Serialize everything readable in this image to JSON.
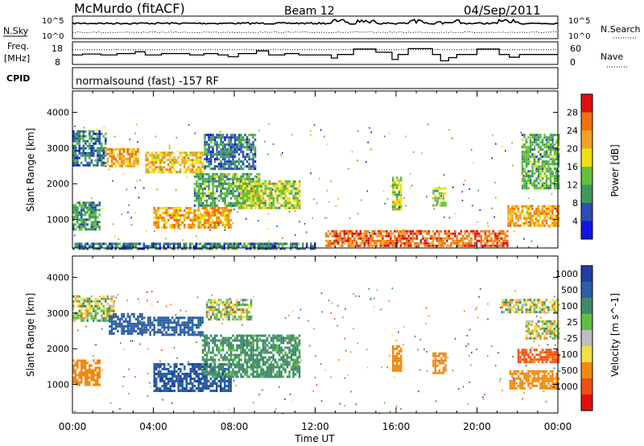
{
  "header": {
    "station": "McMurdo (fitACF)",
    "beam": "Beam 12",
    "date": "04/Sep/2011"
  },
  "noise_panel": {
    "left_label": "N.Sky",
    "right_label": "N.Search",
    "left_ticks": [
      "10^5",
      "10^0"
    ],
    "right_ticks": [
      "10^5",
      "10^0"
    ],
    "series": [
      {
        "name": "N.Sky",
        "style": "solid",
        "level": 0.68,
        "bursts_h": [
          13.0,
          13.3,
          13.5,
          14.2,
          14.5,
          14.9,
          16.8,
          17.2,
          18.1,
          19.0,
          21.2,
          21.4,
          21.9
        ]
      },
      {
        "name": "N.Search",
        "style": "dotted",
        "level": 0.28
      }
    ]
  },
  "freq_panel": {
    "left_label": "Freq.",
    "left_unit": "[MHz]",
    "right_label": "Nave",
    "left_ticks": [
      18,
      8
    ],
    "right_ticks": [
      60,
      0
    ],
    "freq_steps": [
      {
        "t": 0.0,
        "f": 12.2
      },
      {
        "t": 0.5,
        "f": 12.6
      },
      {
        "t": 1.4,
        "f": 12.2
      },
      {
        "t": 2.2,
        "f": 12.8
      },
      {
        "t": 3.1,
        "f": 13.6
      },
      {
        "t": 3.6,
        "f": 12.2
      },
      {
        "t": 4.4,
        "f": 12.8
      },
      {
        "t": 5.8,
        "f": 12.2
      },
      {
        "t": 6.5,
        "f": 12.8
      },
      {
        "t": 7.2,
        "f": 12.2
      },
      {
        "t": 7.7,
        "f": 11.4
      },
      {
        "t": 8.2,
        "f": 12.8
      },
      {
        "t": 9.1,
        "f": 14.0
      },
      {
        "t": 9.7,
        "f": 12.2
      },
      {
        "t": 10.5,
        "f": 12.8
      },
      {
        "t": 11.2,
        "f": 12.2
      },
      {
        "t": 12.2,
        "f": 12.2
      },
      {
        "t": 12.8,
        "f": 10.8
      },
      {
        "t": 13.1,
        "f": 12.4
      },
      {
        "t": 13.9,
        "f": 14.8
      },
      {
        "t": 15.0,
        "f": 13.4
      },
      {
        "t": 15.8,
        "f": 10.2
      },
      {
        "t": 16.1,
        "f": 12.4
      },
      {
        "t": 16.6,
        "f": 15.0
      },
      {
        "t": 17.8,
        "f": 12.4
      },
      {
        "t": 18.2,
        "f": 9.6
      },
      {
        "t": 18.6,
        "f": 11.0
      },
      {
        "t": 19.0,
        "f": 12.4
      },
      {
        "t": 20.0,
        "f": 14.8
      },
      {
        "t": 21.1,
        "f": 12.4
      },
      {
        "t": 21.6,
        "f": 11.2
      },
      {
        "t": 22.1,
        "f": 12.4
      },
      {
        "t": 24.0,
        "f": 12.4
      }
    ],
    "nave_level": 0.65
  },
  "cpid_panel": {
    "label": "CPID",
    "text": "normalsound (fast) -157 RF"
  },
  "colorbars": {
    "power": {
      "label": "Power [dB]",
      "ticks": [
        "4",
        "8",
        "12",
        "16",
        "20",
        "24",
        "28"
      ],
      "colors": [
        "#1414e6",
        "#2a4fb0",
        "#3c9a5a",
        "#63c03a",
        "#f0e010",
        "#f5a020",
        "#f07010",
        "#e01010"
      ]
    },
    "velocity": {
      "label": "Velocity [m s^-1]",
      "ticks": [
        "1000",
        "500",
        "100",
        "25",
        "-25",
        "-100",
        "-500",
        "-1000"
      ],
      "colors": [
        "#1e3ea8",
        "#2a5fa5",
        "#3f8a6a",
        "#5cc040",
        "#bebebe",
        "#f2e040",
        "#f08a10",
        "#f05010",
        "#e01010"
      ]
    }
  },
  "chart_data": [
    {
      "type": "heatmap",
      "name": "power",
      "ylabel": "Slant Range [km]",
      "y_ticks": [
        1000,
        2000,
        3000,
        4000
      ],
      "ylim": [
        200,
        4600
      ],
      "xlim_hours": [
        0,
        24
      ],
      "value_range_db": [
        0,
        32
      ],
      "regions": [
        {
          "t0": 0.0,
          "t1": 1.6,
          "r0": 2500,
          "r1": 3500,
          "v": 8
        },
        {
          "t0": 1.6,
          "t1": 3.2,
          "r0": 2500,
          "r1": 3000,
          "v": 22
        },
        {
          "t0": 3.6,
          "t1": 6.4,
          "r0": 2350,
          "r1": 2900,
          "v": 20
        },
        {
          "t0": 0.0,
          "t1": 1.3,
          "r0": 700,
          "r1": 1500,
          "v": 10
        },
        {
          "t0": 4.0,
          "t1": 7.8,
          "r0": 750,
          "r1": 1350,
          "v": 22
        },
        {
          "t0": 6.0,
          "t1": 9.2,
          "r0": 1400,
          "r1": 2300,
          "v": 12
        },
        {
          "t0": 8.2,
          "t1": 11.2,
          "r0": 1300,
          "r1": 2100,
          "v": 16
        },
        {
          "t0": 6.5,
          "t1": 9.0,
          "r0": 2400,
          "r1": 3400,
          "v": 8
        },
        {
          "t0": 15.8,
          "t1": 16.2,
          "r0": 1300,
          "r1": 2200,
          "v": 16
        },
        {
          "t0": 17.8,
          "t1": 18.4,
          "r0": 1400,
          "r1": 1900,
          "v": 16
        },
        {
          "t0": 21.5,
          "t1": 24.0,
          "r0": 800,
          "r1": 1400,
          "v": 22
        },
        {
          "t0": 22.2,
          "t1": 24.0,
          "r0": 1900,
          "r1": 3400,
          "v": 12
        },
        {
          "t0": 12.5,
          "t1": 21.5,
          "r0": 250,
          "r1": 700,
          "v": 26
        },
        {
          "t0": 0.0,
          "t1": 12.0,
          "r0": 200,
          "r1": 350,
          "v": 8
        }
      ]
    },
    {
      "type": "heatmap",
      "name": "velocity",
      "ylabel": "Slant Range [km]",
      "y_ticks": [
        1000,
        2000,
        3000,
        4000
      ],
      "ylim": [
        200,
        4600
      ],
      "xlim_hours": [
        0,
        24
      ],
      "x_ticks": [
        "00:00",
        "04:00",
        "08:00",
        "12:00",
        "16:00",
        "20:00",
        "00:00"
      ],
      "xlabel": "Time UT",
      "regions": [
        {
          "t0": 0.0,
          "t1": 2.0,
          "r0": 2800,
          "r1": 3500,
          "v": 0
        },
        {
          "t0": 1.8,
          "t1": 3.4,
          "r0": 2400,
          "r1": 3000,
          "v": 700
        },
        {
          "t0": 3.4,
          "t1": 6.4,
          "r0": 2400,
          "r1": 2900,
          "v": 800
        },
        {
          "t0": 6.6,
          "t1": 8.8,
          "r0": 2800,
          "r1": 3400,
          "v": 0
        },
        {
          "t0": 0.0,
          "t1": 1.3,
          "r0": 1000,
          "r1": 1700,
          "v": -300
        },
        {
          "t0": 4.0,
          "t1": 7.8,
          "r0": 800,
          "r1": 1600,
          "v": 900
        },
        {
          "t0": 6.4,
          "t1": 11.2,
          "r0": 1200,
          "r1": 2400,
          "v": 200
        },
        {
          "t0": 15.8,
          "t1": 16.2,
          "r0": 1400,
          "r1": 2100,
          "v": -300
        },
        {
          "t0": 17.8,
          "t1": 18.4,
          "r0": 1300,
          "r1": 1900,
          "v": -300
        },
        {
          "t0": 21.6,
          "t1": 24.0,
          "r0": 900,
          "r1": 1400,
          "v": -300
        },
        {
          "t0": 22.0,
          "t1": 24.0,
          "r0": 1600,
          "r1": 2000,
          "v": -600
        },
        {
          "t0": 22.4,
          "t1": 24.0,
          "r0": 2300,
          "r1": 2800,
          "v": 0
        },
        {
          "t0": 21.2,
          "t1": 24.0,
          "r0": 3000,
          "r1": 3400,
          "v": 0
        }
      ]
    }
  ]
}
